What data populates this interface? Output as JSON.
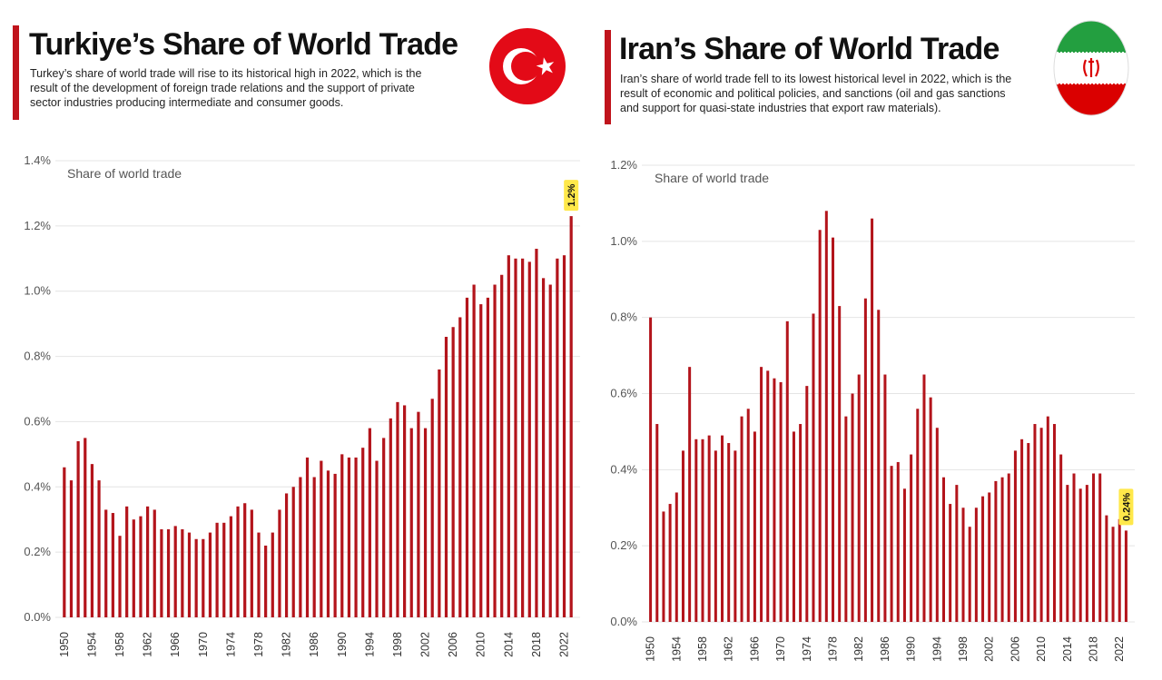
{
  "colors": {
    "bar": "#b3141b",
    "accent": "#c0141c",
    "callout": "#ffe84a"
  },
  "chart_data": [
    {
      "type": "bar",
      "title": "Turkiye’s Share of World Trade",
      "subtitle_lines": [
        "Turkey’s share of world trade will rise to its historical high in 2022, which is the",
        "result of the development of foreign trade relations and the support of private",
        "sector industries producing intermediate and consumer goods."
      ],
      "plot_label": "Share of world trade",
      "flag_icon": "turkey-flag-icon",
      "x_start": 1950,
      "values": [
        0.46,
        0.42,
        0.54,
        0.55,
        0.47,
        0.42,
        0.33,
        0.32,
        0.25,
        0.34,
        0.3,
        0.31,
        0.34,
        0.33,
        0.27,
        0.27,
        0.28,
        0.27,
        0.26,
        0.24,
        0.24,
        0.26,
        0.29,
        0.29,
        0.31,
        0.34,
        0.35,
        0.33,
        0.26,
        0.22,
        0.26,
        0.33,
        0.38,
        0.4,
        0.43,
        0.49,
        0.43,
        0.48,
        0.45,
        0.44,
        0.5,
        0.49,
        0.49,
        0.52,
        0.58,
        0.48,
        0.55,
        0.61,
        0.66,
        0.65,
        0.58,
        0.63,
        0.58,
        0.67,
        0.76,
        0.86,
        0.89,
        0.92,
        0.98,
        1.02,
        0.96,
        0.98,
        1.02,
        1.05,
        1.11,
        1.1,
        1.1,
        1.09,
        1.13,
        1.04,
        1.02,
        1.1,
        1.11,
        1.23
      ],
      "x_tick_labels": [
        "1950",
        "1954",
        "1958",
        "1962",
        "1966",
        "1970",
        "1974",
        "1978",
        "1982",
        "1986",
        "1990",
        "1994",
        "1998",
        "2002",
        "2006",
        "2010",
        "2014",
        "2018",
        "2022"
      ],
      "y_tick_labels": [
        "0.0%",
        "0.2%",
        "0.4%",
        "0.6%",
        "0.8%",
        "1.0%",
        "1.2%",
        "1.4%"
      ],
      "ylim": [
        0,
        1.4
      ],
      "grid": true,
      "callout": {
        "label": "1.2%"
      }
    },
    {
      "type": "bar",
      "title": "Iran’s Share of World Trade",
      "subtitle_lines": [
        "Iran’s share of world trade fell to its lowest historical level in 2022, which is the",
        "result of economic and political policies, and sanctions (oil and gas sanctions",
        "and support for quasi-state industries that export raw materials)."
      ],
      "plot_label": "Share of world trade",
      "flag_icon": "iran-flag-icon",
      "x_start": 1950,
      "values": [
        0.8,
        0.52,
        0.29,
        0.31,
        0.34,
        0.45,
        0.67,
        0.48,
        0.48,
        0.49,
        0.45,
        0.49,
        0.47,
        0.45,
        0.54,
        0.56,
        0.5,
        0.67,
        0.66,
        0.64,
        0.63,
        0.79,
        0.5,
        0.52,
        0.62,
        0.81,
        1.03,
        1.08,
        1.01,
        0.83,
        0.54,
        0.6,
        0.65,
        0.85,
        1.06,
        0.82,
        0.65,
        0.41,
        0.42,
        0.35,
        0.44,
        0.56,
        0.65,
        0.59,
        0.51,
        0.38,
        0.31,
        0.36,
        0.3,
        0.25,
        0.3,
        0.33,
        0.34,
        0.37,
        0.38,
        0.39,
        0.45,
        0.48,
        0.47,
        0.52,
        0.51,
        0.54,
        0.52,
        0.44,
        0.36,
        0.39,
        0.35,
        0.36,
        0.39,
        0.39,
        0.28,
        0.25,
        0.27,
        0.24
      ],
      "x_tick_labels": [
        "1950",
        "1954",
        "1958",
        "1962",
        "1966",
        "1970",
        "1974",
        "1978",
        "1982",
        "1986",
        "1990",
        "1994",
        "1998",
        "2002",
        "2006",
        "2010",
        "2014",
        "2018",
        "2022"
      ],
      "y_tick_labels": [
        "0.0%",
        "0.2%",
        "0.4%",
        "0.6%",
        "0.8%",
        "1.0%",
        "1.2%"
      ],
      "ylim": [
        0,
        1.2
      ],
      "grid": true,
      "callout": {
        "label": "0.24%"
      }
    }
  ]
}
